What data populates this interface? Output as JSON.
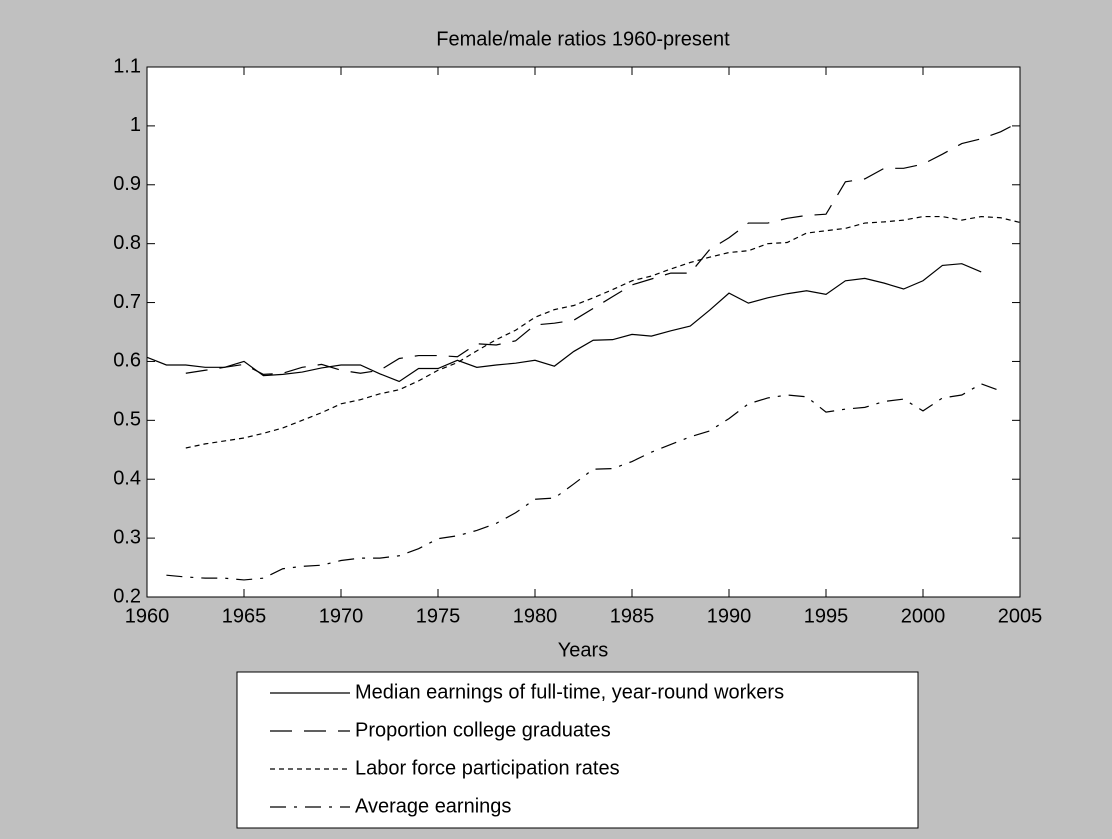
{
  "chart_data": {
    "type": "line",
    "title": "Female/male ratios 1960-present",
    "x_label": "Years",
    "x": [
      1960,
      1961,
      1962,
      1963,
      1964,
      1965,
      1966,
      1967,
      1968,
      1969,
      1970,
      1971,
      1972,
      1973,
      1974,
      1975,
      1976,
      1977,
      1978,
      1979,
      1980,
      1981,
      1982,
      1983,
      1984,
      1985,
      1986,
      1987,
      1988,
      1989,
      1990,
      1991,
      1992,
      1993,
      1994,
      1995,
      1996,
      1997,
      1998,
      1999,
      2000,
      2001,
      2002,
      2003,
      2004,
      2005
    ],
    "series": [
      {
        "name": "Median earnings of full-time, year-round workers",
        "color": "#000000",
        "style": "solid",
        "values": [
          0.607,
          0.594,
          0.594,
          0.59,
          0.59,
          0.6,
          0.576,
          0.578,
          0.582,
          0.589,
          0.594,
          0.594,
          0.579,
          0.566,
          0.588,
          0.588,
          0.602,
          0.59,
          0.594,
          0.597,
          0.602,
          0.592,
          0.617,
          0.636,
          0.637,
          0.646,
          0.643,
          0.652,
          0.66,
          0.687,
          0.716,
          0.699,
          0.708,
          0.715,
          0.72,
          0.714,
          0.737,
          0.741,
          0.733,
          0.723,
          0.737,
          0.763,
          0.766,
          0.752,
          null,
          null
        ]
      },
      {
        "name": "Proportion college graduates",
        "color": "#000000",
        "style": "longdash",
        "values": [
          null,
          null,
          0.58,
          0.585,
          0.59,
          0.595,
          0.578,
          0.58,
          0.59,
          0.595,
          0.585,
          0.58,
          0.585,
          0.605,
          0.61,
          0.61,
          0.608,
          0.63,
          0.628,
          0.635,
          0.662,
          0.665,
          0.67,
          0.69,
          0.71,
          0.73,
          0.74,
          0.75,
          0.75,
          0.79,
          0.81,
          0.835,
          0.835,
          0.843,
          0.848,
          0.85,
          0.905,
          0.91,
          0.928,
          0.928,
          0.935,
          0.952,
          0.97,
          0.978,
          0.99,
          1.007
        ]
      },
      {
        "name": "Labor force participation rates",
        "color": "#000000",
        "style": "dotted",
        "values": [
          null,
          null,
          0.453,
          0.46,
          0.465,
          0.47,
          0.478,
          0.487,
          0.5,
          0.513,
          0.528,
          0.535,
          0.545,
          0.552,
          0.567,
          0.585,
          0.598,
          0.618,
          0.637,
          0.653,
          0.675,
          0.688,
          0.695,
          0.708,
          0.722,
          0.737,
          0.745,
          0.757,
          0.768,
          0.777,
          0.785,
          0.788,
          0.8,
          0.802,
          0.818,
          0.822,
          0.826,
          0.835,
          0.837,
          0.84,
          0.846,
          0.846,
          0.84,
          0.846,
          0.844,
          0.836
        ]
      },
      {
        "name": "Average earnings",
        "color": "#000000",
        "style": "dashdot",
        "values": [
          null,
          0.237,
          0.234,
          0.232,
          0.232,
          0.229,
          0.232,
          0.248,
          0.252,
          0.254,
          0.262,
          0.266,
          0.266,
          0.27,
          0.282,
          0.299,
          0.304,
          0.313,
          0.325,
          0.343,
          0.366,
          0.368,
          0.392,
          0.417,
          0.418,
          0.43,
          0.446,
          0.459,
          0.472,
          0.482,
          0.503,
          0.528,
          0.538,
          0.543,
          0.54,
          0.514,
          0.519,
          0.522,
          0.532,
          0.536,
          0.516,
          0.538,
          0.543,
          0.562,
          0.55,
          null
        ]
      }
    ],
    "xlim": [
      1960,
      2005
    ],
    "xticks": [
      1960,
      1965,
      1970,
      1975,
      1980,
      1985,
      1990,
      1995,
      2000,
      2005
    ],
    "ylim": [
      0.2,
      1.1
    ],
    "yticks": [
      0.2,
      0.3,
      0.4,
      0.5,
      0.6,
      0.7,
      0.8,
      0.9,
      1,
      1.1
    ],
    "legend": "bottom"
  }
}
